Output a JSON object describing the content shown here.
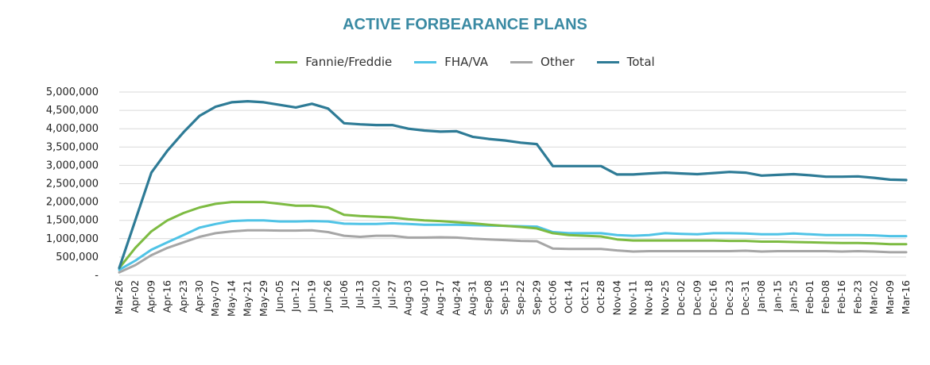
{
  "colors": {
    "title": "#3a8aa3",
    "fannie_freddie": "#7dbb42",
    "fha_va": "#4fc3e6",
    "other": "#a6a6a6",
    "total": "#2e7b96",
    "grid": "#d9d9d9"
  },
  "chart_data": {
    "type": "line",
    "title": "ACTIVE FORBEARANCE PLANS",
    "xlabel": "",
    "ylabel": "",
    "legend_position": "top",
    "grid": true,
    "ylim": [
      0,
      5000000
    ],
    "yticks": [
      {
        "value": 0,
        "label": "-"
      },
      {
        "value": 500000,
        "label": "500,000"
      },
      {
        "value": 1000000,
        "label": "1,000,000"
      },
      {
        "value": 1500000,
        "label": "1,500,000"
      },
      {
        "value": 2000000,
        "label": "2,000,000"
      },
      {
        "value": 2500000,
        "label": "2,500,000"
      },
      {
        "value": 3000000,
        "label": "3,000,000"
      },
      {
        "value": 3500000,
        "label": "3,500,000"
      },
      {
        "value": 4000000,
        "label": "4,000,000"
      },
      {
        "value": 4500000,
        "label": "4,500,000"
      },
      {
        "value": 5000000,
        "label": "5,000,000"
      }
    ],
    "x": [
      "Mar-26",
      "Apr-02",
      "Apr-09",
      "Apr-16",
      "Apr-23",
      "Apr-30",
      "May-07",
      "May-14",
      "May-21",
      "May-29",
      "Jun-05",
      "Jun-12",
      "Jun-19",
      "Jun-26",
      "Jul-06",
      "Jul-13",
      "Jul-20",
      "Jul-27",
      "Aug-03",
      "Aug-10",
      "Aug-17",
      "Aug-24",
      "Aug-31",
      "Sep-08",
      "Sep-15",
      "Sep-22",
      "Sep-29",
      "Oct-06",
      "Oct-14",
      "Oct-21",
      "Oct-28",
      "Nov-04",
      "Nov-11",
      "Nov-18",
      "Nov-25",
      "Dec-02",
      "Dec-09",
      "Dec-16",
      "Dec-23",
      "Dec-31",
      "Jan-08",
      "Jan-15",
      "Jan-25",
      "Feb-01",
      "Feb-08",
      "Feb-16",
      "Feb-23",
      "Mar-02",
      "Mar-09",
      "Mar-16"
    ],
    "series": [
      {
        "name": "Fannie/Freddie",
        "color_key": "fannie_freddie",
        "values": [
          200000,
          750000,
          1200000,
          1500000,
          1700000,
          1850000,
          1950000,
          2000000,
          2000000,
          2000000,
          1950000,
          1900000,
          1900000,
          1850000,
          1650000,
          1620000,
          1600000,
          1580000,
          1530000,
          1500000,
          1480000,
          1450000,
          1420000,
          1380000,
          1350000,
          1320000,
          1280000,
          1150000,
          1100000,
          1080000,
          1060000,
          980000,
          950000,
          950000,
          950000,
          950000,
          950000,
          950000,
          940000,
          940000,
          920000,
          920000,
          910000,
          900000,
          890000,
          880000,
          880000,
          870000,
          850000,
          850000
        ]
      },
      {
        "name": "FHA/VA",
        "color_key": "fha_va",
        "values": [
          150000,
          400000,
          700000,
          900000,
          1100000,
          1300000,
          1400000,
          1480000,
          1500000,
          1500000,
          1470000,
          1470000,
          1480000,
          1470000,
          1410000,
          1400000,
          1400000,
          1420000,
          1400000,
          1380000,
          1380000,
          1380000,
          1370000,
          1360000,
          1350000,
          1340000,
          1330000,
          1180000,
          1150000,
          1150000,
          1150000,
          1100000,
          1080000,
          1100000,
          1150000,
          1130000,
          1120000,
          1150000,
          1150000,
          1140000,
          1120000,
          1120000,
          1140000,
          1120000,
          1100000,
          1100000,
          1100000,
          1090000,
          1070000,
          1070000
        ]
      },
      {
        "name": "Other",
        "color_key": "other",
        "values": [
          80000,
          280000,
          550000,
          750000,
          900000,
          1050000,
          1150000,
          1200000,
          1230000,
          1230000,
          1220000,
          1220000,
          1230000,
          1180000,
          1080000,
          1050000,
          1080000,
          1080000,
          1030000,
          1030000,
          1040000,
          1030000,
          1000000,
          980000,
          960000,
          940000,
          930000,
          730000,
          720000,
          720000,
          720000,
          680000,
          650000,
          660000,
          660000,
          660000,
          660000,
          660000,
          660000,
          670000,
          650000,
          660000,
          660000,
          660000,
          660000,
          650000,
          660000,
          650000,
          630000,
          630000
        ]
      },
      {
        "name": "Total",
        "color_key": "total",
        "values": [
          200000,
          1500000,
          2800000,
          3400000,
          3900000,
          4350000,
          4600000,
          4720000,
          4750000,
          4720000,
          4650000,
          4580000,
          4680000,
          4550000,
          4150000,
          4120000,
          4100000,
          4100000,
          4000000,
          3950000,
          3920000,
          3930000,
          3780000,
          3720000,
          3680000,
          3620000,
          3580000,
          2980000,
          2980000,
          2980000,
          2980000,
          2750000,
          2750000,
          2780000,
          2800000,
          2780000,
          2760000,
          2790000,
          2820000,
          2800000,
          2720000,
          2740000,
          2760000,
          2730000,
          2690000,
          2690000,
          2700000,
          2660000,
          2610000,
          2600000
        ]
      }
    ]
  }
}
